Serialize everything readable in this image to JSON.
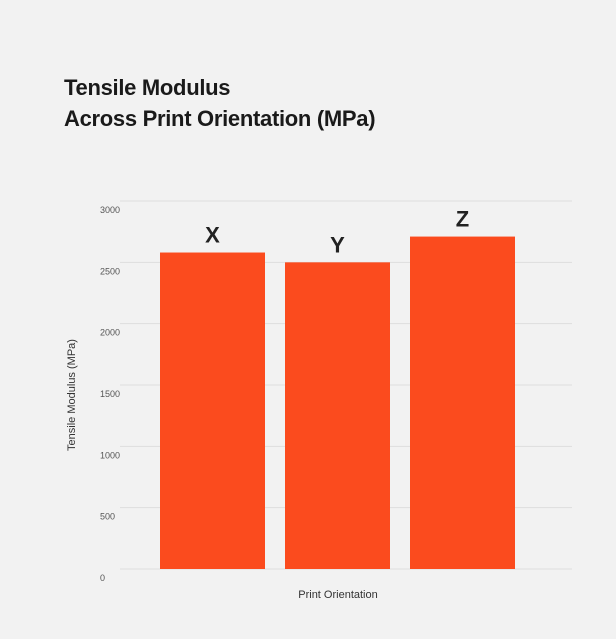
{
  "chart_data": {
    "type": "bar",
    "title_lines": [
      "Tensile Modulus",
      "Across Print Orientation (MPa)"
    ],
    "xlabel": "Print Orientation",
    "ylabel": "Tensile Modulus (MPa)",
    "categories": [
      "X",
      "Y",
      "Z"
    ],
    "values": [
      2580,
      2500,
      2710
    ],
    "ylim": [
      0,
      3000
    ],
    "yticks": [
      0,
      500,
      1000,
      1500,
      2000,
      2500,
      3000
    ],
    "grid": true,
    "legend": "none",
    "bar_color": "#fb4b1e",
    "grid_color": "#dddddd"
  }
}
